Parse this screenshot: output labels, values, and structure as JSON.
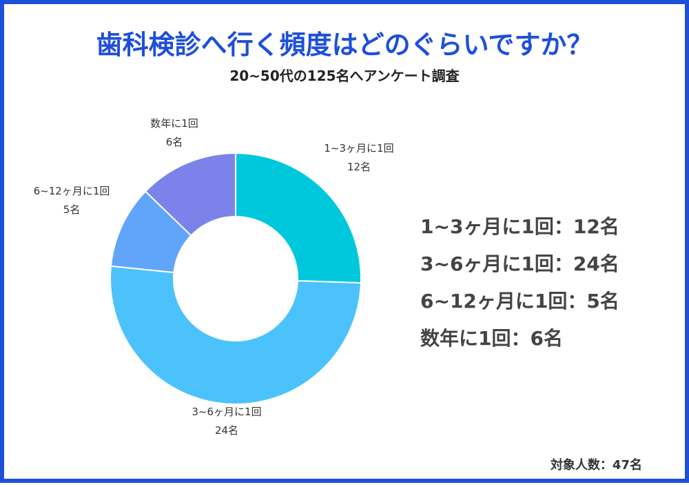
{
  "title": "歯科検診へ行く頻度はどのぐらいですか？",
  "subtitle": "20~50代の125名へアンケート調査",
  "footer": "対象人数：47名",
  "legend": [
    "1~3ヶ月に1回：12名",
    "3~6ヶ月に1回：24名",
    "6~12ヶ月に1回：5名",
    "数年に1回：6名"
  ],
  "chart_data": {
    "type": "pie",
    "variant": "donut",
    "unit": "名",
    "slices": [
      {
        "label": "1~3ヶ月に1回",
        "value": 12,
        "value_label": "12名",
        "color": "#00C8DC"
      },
      {
        "label": "3~6ヶ月に1回",
        "value": 24,
        "value_label": "24名",
        "color": "#4CC2FC"
      },
      {
        "label": "6~12ヶ月に1回",
        "value": 5,
        "value_label": "5名",
        "color": "#60A5FA"
      },
      {
        "label": "数年に1回",
        "value": 6,
        "value_label": "6名",
        "color": "#7B83EB"
      }
    ]
  }
}
